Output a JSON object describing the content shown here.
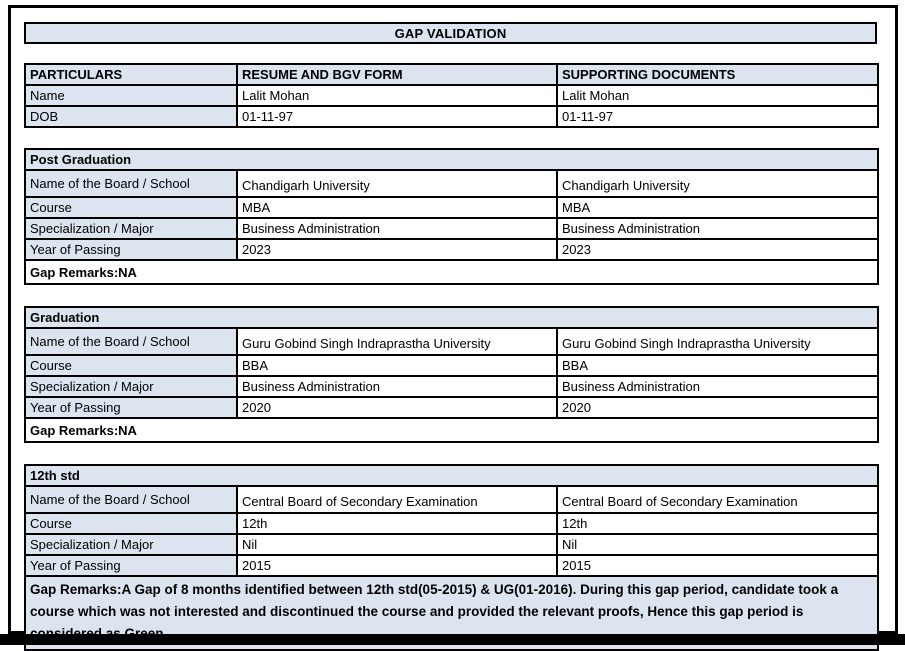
{
  "title": "GAP VALIDATION",
  "colors": {
    "cell_fill": "#dce4f0",
    "border": "#000000",
    "page_bg": "#ffffff"
  },
  "header_table": {
    "columns": [
      "PARTICULARS",
      "RESUME AND BGV FORM",
      "SUPPORTING DOCUMENTS"
    ],
    "rows": [
      {
        "label": "Name",
        "resume": "Lalit Mohan",
        "supporting": "Lalit Mohan"
      },
      {
        "label": "DOB",
        "resume": "01-11-97",
        "supporting": "01-11-97"
      }
    ]
  },
  "sections": [
    {
      "title": "Post Graduation",
      "rows": [
        {
          "label": "Name of the Board / School",
          "resume": "Chandigarh University",
          "supporting": "Chandigarh University"
        },
        {
          "label": "Course",
          "resume": "MBA",
          "supporting": "MBA"
        },
        {
          "label": "Specialization / Major",
          "resume": "Business Administration",
          "supporting": "Business Administration"
        },
        {
          "label": "Year of Passing",
          "resume": "2023",
          "supporting": "2023"
        }
      ],
      "gap_remarks": "Gap Remarks:NA"
    },
    {
      "title": "Graduation",
      "rows": [
        {
          "label": "Name of the Board / School",
          "resume": "Guru Gobind Singh Indraprastha University",
          "supporting": "Guru Gobind Singh Indraprastha University"
        },
        {
          "label": "Course",
          "resume": "BBA",
          "supporting": "BBA"
        },
        {
          "label": "Specialization / Major",
          "resume": "Business Administration",
          "supporting": "Business Administration"
        },
        {
          "label": "Year of Passing",
          "resume": "2020",
          "supporting": "2020"
        }
      ],
      "gap_remarks": "Gap Remarks:NA"
    },
    {
      "title": "12th std",
      "rows": [
        {
          "label": "Name of the Board / School",
          "resume": "Central Board of Secondary Examination",
          "supporting": "Central Board of Secondary Examination"
        },
        {
          "label": "Course",
          "resume": "12th",
          "supporting": "12th"
        },
        {
          "label": "Specialization / Major",
          "resume": "Nil",
          "supporting": "Nil"
        },
        {
          "label": "Year of Passing",
          "resume": "2015",
          "supporting": "2015"
        }
      ],
      "gap_remarks": "Gap Remarks:A Gap of 8 months identified between 12th std(05-2015) & UG(01-2016). During this gap period, candidate took a course which was not interested and discontinued the course and provided the relevant proofs, Hence this gap period is considered as Green."
    }
  ]
}
